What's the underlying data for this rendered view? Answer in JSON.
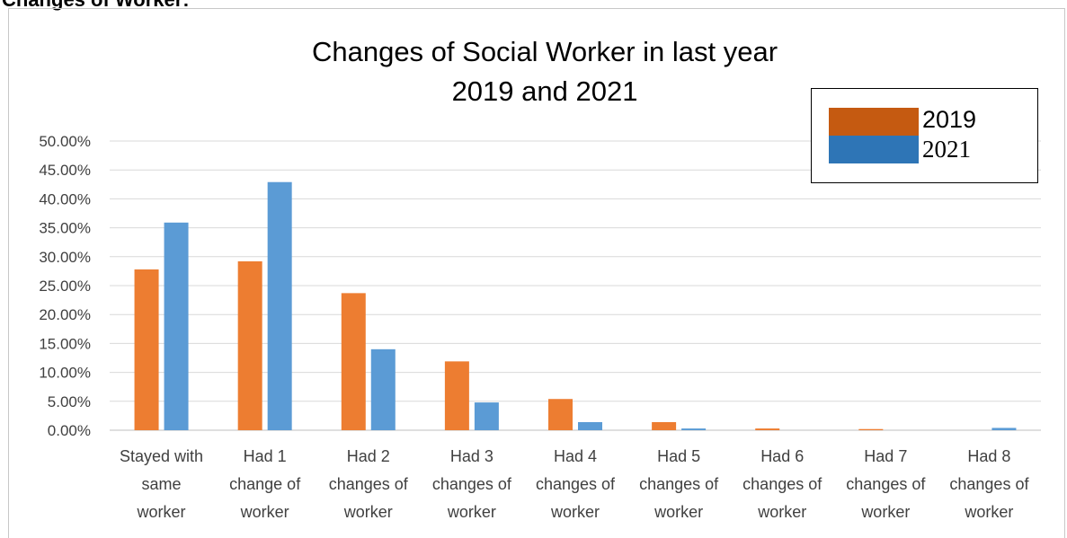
{
  "page": {
    "heading": "Changes of Worker:"
  },
  "chart_data": {
    "type": "bar",
    "title": "Changes of Social Worker in last year",
    "subtitle": "2019 and 2021",
    "categories": [
      [
        "Stayed with",
        "same",
        "worker"
      ],
      [
        "Had 1",
        "change of",
        "worker"
      ],
      [
        "Had 2",
        "changes of",
        "worker"
      ],
      [
        "Had 3",
        "changes of",
        "worker"
      ],
      [
        "Had 4",
        "changes of",
        "worker"
      ],
      [
        "Had 5",
        "changes of",
        "worker"
      ],
      [
        "Had 6",
        "changes of",
        "worker"
      ],
      [
        "Had 7",
        "changes of",
        "worker"
      ],
      [
        "Had 8",
        "changes of",
        "worker"
      ]
    ],
    "series": [
      {
        "name": "2019",
        "color": "#ED7D31",
        "legend_color": "#C55A11",
        "values": [
          27.8,
          29.2,
          23.7,
          11.9,
          5.4,
          1.4,
          0.3,
          0.2,
          0.0
        ]
      },
      {
        "name": "2021",
        "color": "#5B9BD5",
        "legend_color": "#2E75B6",
        "values": [
          35.9,
          42.9,
          14.0,
          4.8,
          1.4,
          0.3,
          0.0,
          0.0,
          0.4
        ]
      }
    ],
    "ylim": [
      0,
      50
    ],
    "yticks": [
      "0.00%",
      "5.00%",
      "10.00%",
      "15.00%",
      "20.00%",
      "25.00%",
      "30.00%",
      "35.00%",
      "40.00%",
      "45.00%",
      "50.00%"
    ],
    "grid": true,
    "legend_position": "top-right"
  }
}
